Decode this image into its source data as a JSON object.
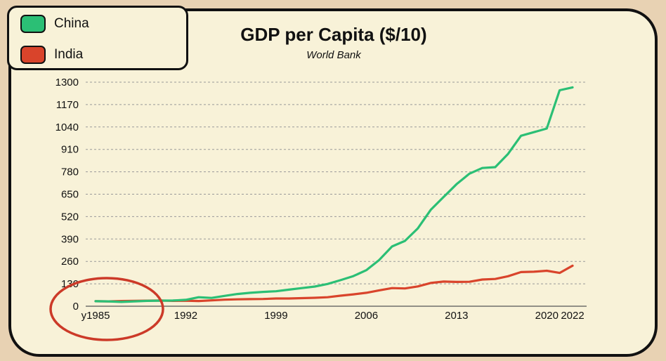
{
  "colors": {
    "china": "#2bbf75",
    "india": "#d9442b",
    "annotation": "#cc3a28",
    "grid": "#999999"
  },
  "chart_data": {
    "type": "line",
    "title": "GDP per Capita ($/10)",
    "subtitle": "World Bank",
    "xlabel": "",
    "ylabel": "",
    "x_range": [
      1985,
      2022
    ],
    "ylim": [
      0,
      1300
    ],
    "y_ticks": [
      0,
      130,
      260,
      390,
      520,
      650,
      780,
      910,
      1040,
      1170,
      1300
    ],
    "x_ticks": [
      {
        "value": 1985,
        "label": "y1985"
      },
      {
        "value": 1992,
        "label": "1992"
      },
      {
        "value": 1999,
        "label": "1999"
      },
      {
        "value": 2006,
        "label": "2006"
      },
      {
        "value": 2013,
        "label": "2013"
      },
      {
        "value": 2020,
        "label": "2020"
      },
      {
        "value": 2022,
        "label": "2022"
      }
    ],
    "grid": true,
    "legend_position": "top-left",
    "x": [
      1985,
      1986,
      1987,
      1988,
      1989,
      1990,
      1991,
      1992,
      1993,
      1994,
      1995,
      1996,
      1997,
      1998,
      1999,
      2000,
      2001,
      2002,
      2003,
      2004,
      2005,
      2006,
      2007,
      2008,
      2009,
      2010,
      2011,
      2012,
      2013,
      2014,
      2015,
      2016,
      2017,
      2018,
      2019,
      2020,
      2021,
      2022
    ],
    "series": [
      {
        "name": "China",
        "color": "#2bbf75",
        "values": [
          29,
          28,
          25,
          28,
          31,
          32,
          33,
          37,
          52,
          48,
          60,
          71,
          78,
          83,
          87,
          96,
          105,
          114,
          129,
          151,
          175,
          209,
          268,
          347,
          379,
          452,
          559,
          634,
          708,
          769,
          802,
          807,
          884,
          989,
          1010,
          1031,
          1253,
          1270
        ]
      },
      {
        "name": "India",
        "color": "#d9442b",
        "values": [
          29,
          28,
          30,
          31,
          32,
          33,
          31,
          32,
          30,
          34,
          38,
          40,
          41,
          42,
          45,
          45,
          47,
          49,
          52,
          61,
          69,
          78,
          92,
          105,
          103,
          115,
          135,
          143,
          141,
          142,
          155,
          158,
          174,
          198,
          200,
          206,
          193,
          235
        ]
      }
    ]
  },
  "annotation": {
    "type": "circle",
    "target": "y1985"
  }
}
